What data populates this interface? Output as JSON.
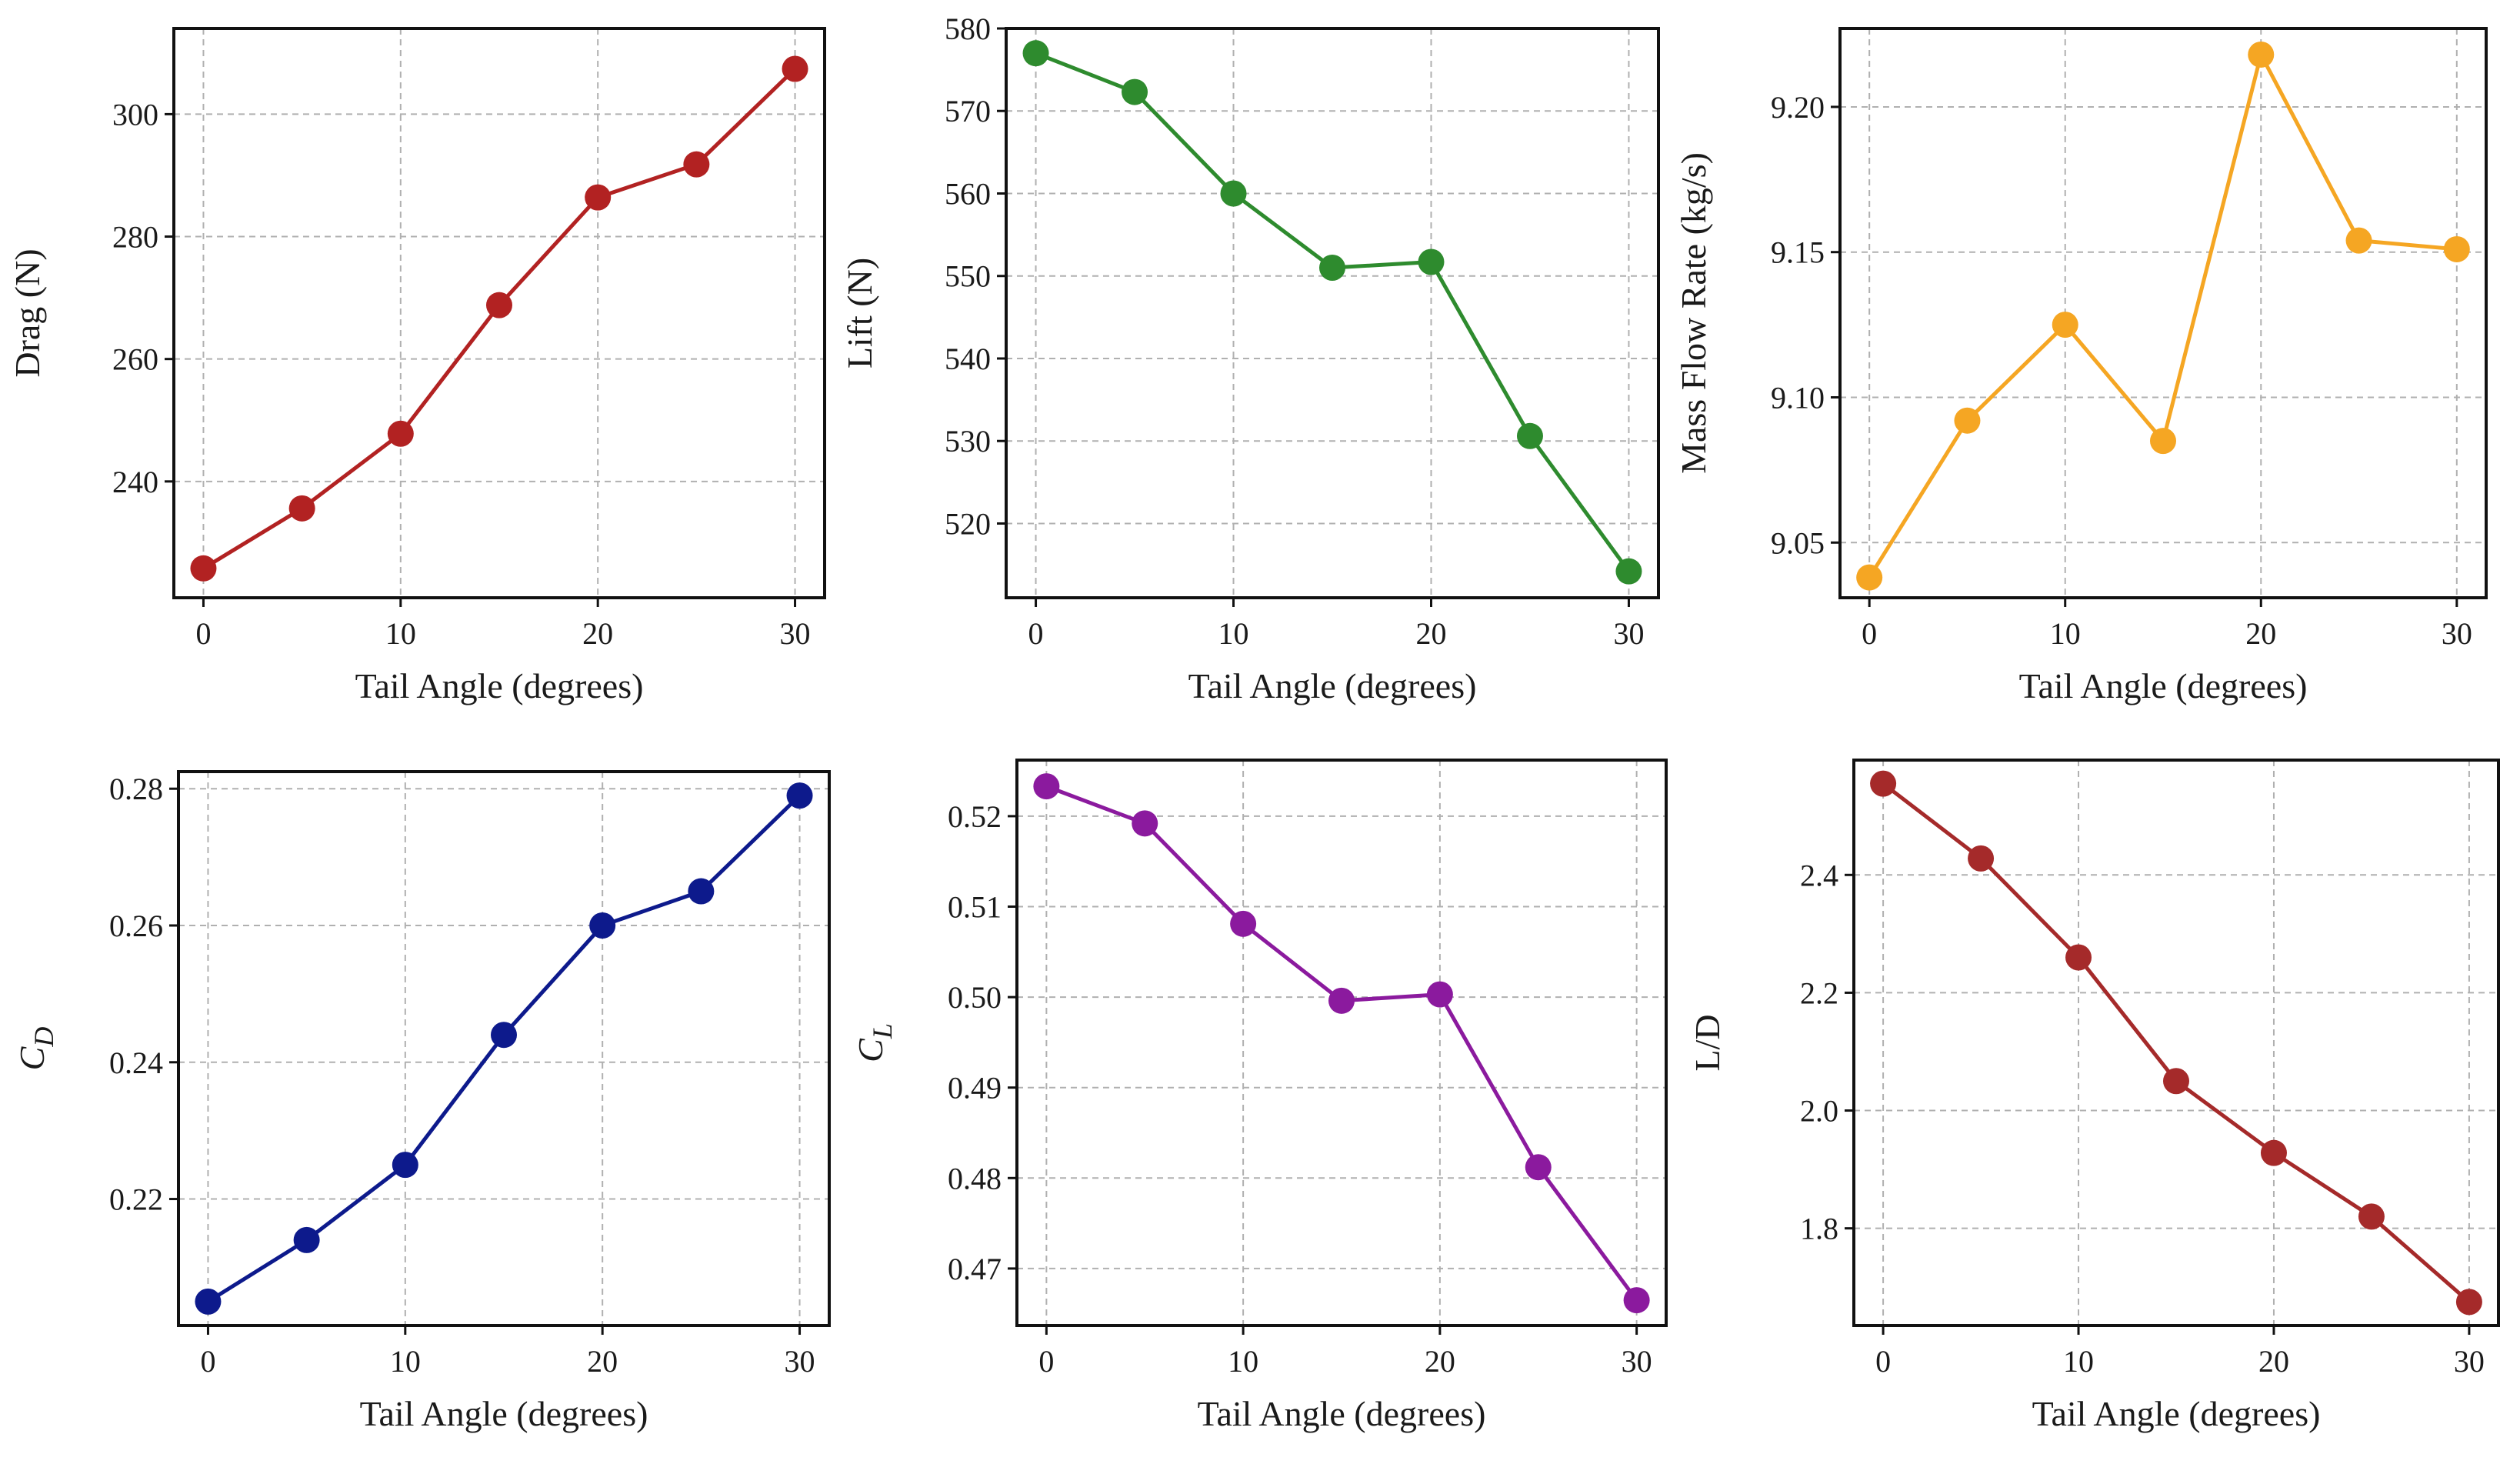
{
  "chart_data": [
    {
      "type": "line",
      "xlabel": "Tail Angle (degrees)",
      "ylabel": "Drag (N)",
      "ylabel_italic": false,
      "x": [
        0,
        5,
        10,
        15,
        20,
        25,
        30
      ],
      "y": [
        225.8,
        235.6,
        247.8,
        268.8,
        286.4,
        291.8,
        307.4
      ],
      "xlim": [
        -1.5,
        31.5
      ],
      "ylim": [
        221,
        314
      ],
      "xticks": [
        0,
        10,
        20,
        30
      ],
      "yticks": [
        240,
        260,
        280,
        300
      ],
      "ytick_decimals": 0,
      "color": "#b22222",
      "grid": true
    },
    {
      "type": "line",
      "xlabel": "Tail Angle (degrees)",
      "ylabel": "Lift (N)",
      "ylabel_italic": false,
      "x": [
        0,
        5,
        10,
        15,
        20,
        25,
        30
      ],
      "y": [
        577.0,
        572.3,
        560.0,
        551.0,
        551.7,
        530.6,
        514.2
      ],
      "xlim": [
        -1.5,
        31.5
      ],
      "ylim": [
        511,
        580
      ],
      "xticks": [
        0,
        10,
        20,
        30
      ],
      "yticks": [
        520,
        530,
        540,
        550,
        560,
        570,
        580
      ],
      "ytick_decimals": 0,
      "color": "#2e8b2e",
      "grid": true
    },
    {
      "type": "line",
      "xlabel": "Tail Angle (degrees)",
      "ylabel": "Mass Flow Rate (kg/s)",
      "ylabel_italic": false,
      "x": [
        0,
        5,
        10,
        15,
        20,
        25,
        30
      ],
      "y": [
        9.038,
        9.092,
        9.125,
        9.085,
        9.218,
        9.154,
        9.151
      ],
      "xlim": [
        -1.5,
        31.5
      ],
      "ylim": [
        9.031,
        9.227
      ],
      "xticks": [
        0,
        10,
        20,
        30
      ],
      "yticks": [
        9.05,
        9.1,
        9.15,
        9.2
      ],
      "ytick_decimals": 2,
      "color": "#f5a623",
      "grid": true
    },
    {
      "type": "line",
      "xlabel": "Tail Angle (degrees)",
      "ylabel": "C",
      "ylabel_sub": "D",
      "ylabel_italic": true,
      "x": [
        0,
        5,
        10,
        15,
        20,
        25,
        30
      ],
      "y": [
        0.205,
        0.214,
        0.225,
        0.244,
        0.26,
        0.265,
        0.279
      ],
      "xlim": [
        -1.5,
        31.5
      ],
      "ylim": [
        0.2015,
        0.2825
      ],
      "xticks": [
        0,
        10,
        20,
        30
      ],
      "yticks": [
        0.22,
        0.24,
        0.26,
        0.28
      ],
      "ytick_decimals": 2,
      "color": "#0d1a8c",
      "grid": true
    },
    {
      "type": "line",
      "xlabel": "Tail Angle (degrees)",
      "ylabel": "C",
      "ylabel_sub": "L",
      "ylabel_italic": true,
      "x": [
        0,
        5,
        10,
        15,
        20,
        25,
        30
      ],
      "y": [
        0.5233,
        0.5192,
        0.5081,
        0.4996,
        0.5003,
        0.4812,
        0.4665
      ],
      "xlim": [
        -1.5,
        31.5
      ],
      "ylim": [
        0.4637,
        0.5262
      ],
      "xticks": [
        0,
        10,
        20,
        30
      ],
      "yticks": [
        0.47,
        0.48,
        0.49,
        0.5,
        0.51,
        0.52
      ],
      "ytick_decimals": 2,
      "color": "#8b1a9e",
      "grid": true
    },
    {
      "type": "line",
      "xlabel": "Tail Angle (degrees)",
      "ylabel": "L/D",
      "ylabel_italic": false,
      "x": [
        0,
        5,
        10,
        15,
        20,
        25,
        30
      ],
      "y": [
        2.555,
        2.428,
        2.26,
        2.05,
        1.928,
        1.82,
        1.675
      ],
      "xlim": [
        -1.5,
        31.5
      ],
      "ylim": [
        1.635,
        2.595
      ],
      "xticks": [
        0,
        10,
        20,
        30
      ],
      "yticks": [
        1.8,
        2.0,
        2.2,
        2.4
      ],
      "ytick_decimals": 1,
      "color": "#a52a2a",
      "grid": true
    }
  ]
}
